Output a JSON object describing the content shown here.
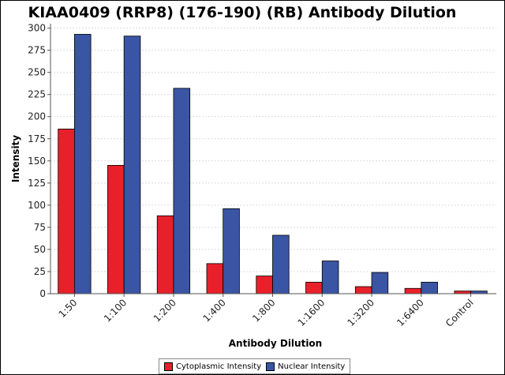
{
  "chart_data": {
    "type": "bar",
    "title": "KIAA0409 (RRP8) (176-190) (RB) Antibody Dilution",
    "xlabel": "Antibody Dilution",
    "ylabel": "Intensity",
    "categories": [
      "1:50",
      "1:100",
      "1:200",
      "1:400",
      "1:800",
      "1:1600",
      "1:3200",
      "1:6400",
      "Control"
    ],
    "series": [
      {
        "name": "Cytoplasmic Intensity",
        "color": "#e8202a",
        "values": [
          186,
          145,
          88,
          34,
          20,
          13,
          8,
          6,
          3
        ]
      },
      {
        "name": "Nuclear Intensity",
        "color": "#3a55a4",
        "values": [
          293,
          291,
          232,
          96,
          66,
          37,
          24,
          13,
          3
        ]
      }
    ],
    "ylim": [
      0,
      305
    ],
    "yticks": [
      0,
      25,
      50,
      75,
      100,
      125,
      150,
      175,
      200,
      225,
      250,
      275,
      300
    ],
    "grid": true,
    "legend_position": "bottom"
  }
}
